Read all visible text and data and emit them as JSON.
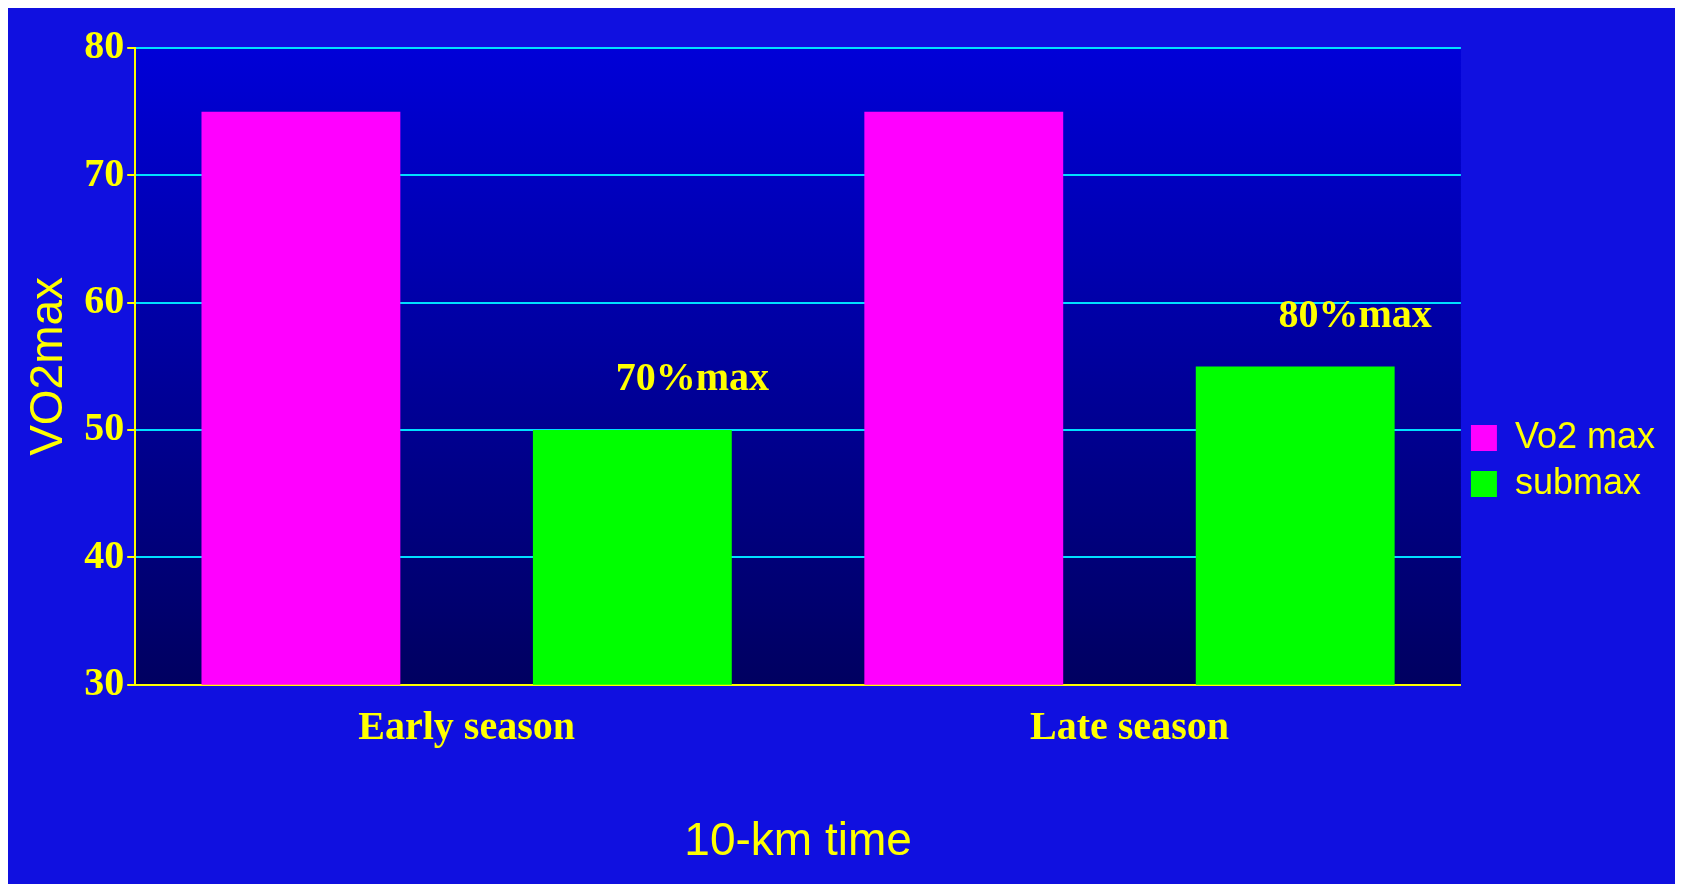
{
  "chart_data": {
    "type": "bar",
    "xlabel": "10-km time",
    "ylabel": "VO2max",
    "categories": [
      "Early season",
      "Late season"
    ],
    "series": [
      {
        "name": "Vo2 max",
        "color": "#ff00ff",
        "values": [
          75,
          75
        ]
      },
      {
        "name": "submax",
        "color": "#00ff00",
        "values": [
          50,
          55
        ]
      }
    ],
    "ylim": [
      30,
      80
    ],
    "yticks": [
      30,
      40,
      50,
      60,
      70,
      80
    ],
    "grid": "y",
    "legend": "right",
    "annotations": [
      "70%max",
      "80%max"
    ]
  }
}
